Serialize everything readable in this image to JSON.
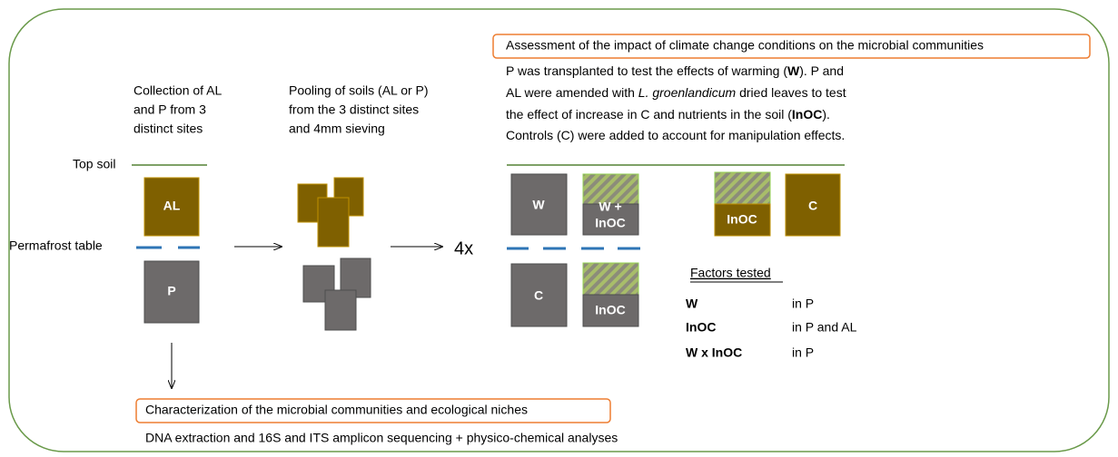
{
  "collection": {
    "lines": [
      "Collection of AL",
      "and P from 3",
      "distinct sites"
    ]
  },
  "pooling": {
    "lines": [
      "Pooling of soils (AL or P)",
      "from the 3 distinct sites",
      "and 4mm sieving"
    ]
  },
  "layers": {
    "top": "Top soil",
    "permafrost": "Permafrost table",
    "al": "AL",
    "p": "P"
  },
  "multiplier": "4x",
  "assessment": {
    "title": "Assessment of the impact of climate change conditions on the microbial communities",
    "description": [
      [
        "P was transplanted to test the effects of warming (",
        "W",
        "). P and"
      ],
      [
        "AL were amended with ",
        "L. groenlandicum",
        " dried leaves to test"
      ],
      [
        "the effect of increase in C and nutrients in the soil (",
        "InOC",
        ")."
      ],
      [
        "Controls (C) were added to account for manipulation effects."
      ]
    ]
  },
  "treatments": {
    "w": "W",
    "w_inoc": [
      "W +",
      "InOC"
    ],
    "inoc_al": "InOC",
    "c_al": "C",
    "c_p": "C",
    "inoc_p": "InOC"
  },
  "factors": {
    "title": "Factors tested",
    "rows": [
      [
        "W",
        "in P"
      ],
      [
        "InOC",
        "in P and AL"
      ],
      [
        "W x InOC",
        "in P"
      ]
    ]
  },
  "characterization": {
    "title": "Characterization of the microbial communities and ecological niches",
    "description": "DNA extraction and 16S and ITS amplicon sequencing + physico-chemical analyses"
  }
}
